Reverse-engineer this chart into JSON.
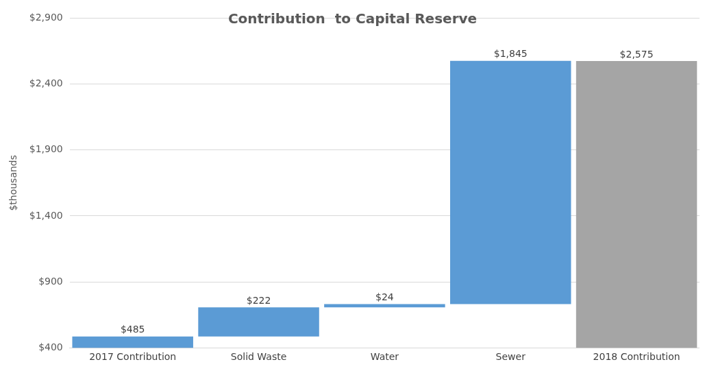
{
  "chart_data": {
    "type": "bar",
    "title": "Contribution  to Capital Reserve",
    "ylabel": "$thousands",
    "categories": [
      "2017 Contribution",
      "Solid Waste",
      "Water",
      "Sewer",
      "2018 Contribution"
    ],
    "values": [
      485,
      222,
      24,
      1845,
      2575
    ],
    "base": [
      null,
      485,
      707,
      731,
      null
    ],
    "colors": [
      "#5b9bd5",
      "#5b9bd5",
      "#5b9bd5",
      "#5b9bd5",
      "#a5a5a5"
    ],
    "value_labels": [
      "$485",
      "$222",
      "$24",
      "$1,845",
      "$2,575"
    ],
    "ylim": [
      400,
      2900
    ],
    "yticks": [
      {
        "value": 400,
        "label": "$400"
      },
      {
        "value": 900,
        "label": "$900"
      },
      {
        "value": 1400,
        "label": "$1,400"
      },
      {
        "value": 1900,
        "label": "$1,900"
      },
      {
        "value": 2400,
        "label": "$2,400"
      },
      {
        "value": 2900,
        "label": "$2,900"
      }
    ],
    "grid": "y",
    "legend": false
  }
}
